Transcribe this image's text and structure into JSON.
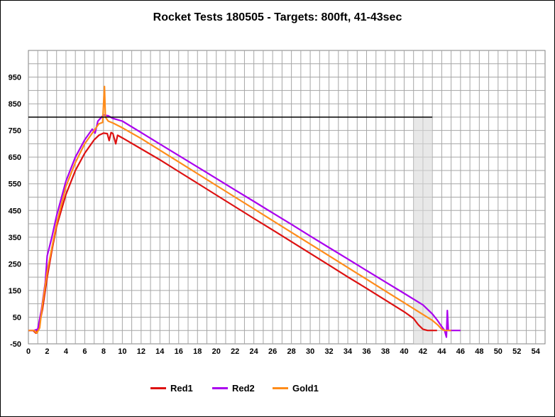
{
  "chart_data": {
    "type": "line",
    "title": "Rocket Tests 180505 - Targets: 800ft, 41-43sec",
    "xlabel": "",
    "ylabel": "",
    "xlim": [
      0,
      55
    ],
    "ylim": [
      -50,
      1050
    ],
    "x_ticks": [
      0,
      2,
      4,
      6,
      8,
      10,
      12,
      14,
      16,
      18,
      20,
      22,
      24,
      26,
      28,
      30,
      32,
      34,
      36,
      38,
      40,
      42,
      44,
      46,
      48,
      50,
      52,
      54
    ],
    "y_ticks": [
      -50,
      50,
      150,
      250,
      350,
      450,
      550,
      650,
      750,
      850,
      950
    ],
    "grid": true,
    "legend_position": "bottom",
    "target_altitude": 800,
    "target_window": [
      41,
      43
    ],
    "series": [
      {
        "name": "Red1",
        "color": "#dd1111",
        "points": [
          [
            0,
            0
          ],
          [
            0.5,
            0
          ],
          [
            0.8,
            -10
          ],
          [
            1.1,
            10
          ],
          [
            1.5,
            80
          ],
          [
            2,
            200
          ],
          [
            2.5,
            300
          ],
          [
            3,
            390
          ],
          [
            4,
            510
          ],
          [
            5,
            600
          ],
          [
            6,
            665
          ],
          [
            7,
            715
          ],
          [
            7.5,
            732
          ],
          [
            8,
            740
          ],
          [
            8.4,
            738
          ],
          [
            8.6,
            712
          ],
          [
            8.8,
            742
          ],
          [
            9,
            738
          ],
          [
            9.3,
            700
          ],
          [
            9.5,
            732
          ],
          [
            10,
            722
          ],
          [
            12,
            681
          ],
          [
            14,
            640
          ],
          [
            16,
            596
          ],
          [
            18,
            552
          ],
          [
            20,
            508
          ],
          [
            22,
            464
          ],
          [
            24,
            420
          ],
          [
            26,
            377
          ],
          [
            28,
            333
          ],
          [
            30,
            289
          ],
          [
            32,
            245
          ],
          [
            34,
            201
          ],
          [
            36,
            158
          ],
          [
            38,
            114
          ],
          [
            40,
            70
          ],
          [
            41,
            45
          ],
          [
            41.5,
            22
          ],
          [
            42,
            5
          ],
          [
            42.5,
            0
          ],
          [
            43.5,
            0
          ]
        ]
      },
      {
        "name": "Red2",
        "color": "#aa00ee",
        "points": [
          [
            0,
            0
          ],
          [
            0.6,
            0
          ],
          [
            1,
            5
          ],
          [
            1.4,
            80
          ],
          [
            1.8,
            180
          ],
          [
            2,
            280
          ],
          [
            2.5,
            350
          ],
          [
            3,
            430
          ],
          [
            4,
            560
          ],
          [
            5,
            650
          ],
          [
            6,
            715
          ],
          [
            6.8,
            755
          ],
          [
            7.1,
            740
          ],
          [
            7.4,
            785
          ],
          [
            8,
            808
          ],
          [
            8.5,
            805
          ],
          [
            9,
            795
          ],
          [
            10,
            785
          ],
          [
            12,
            742
          ],
          [
            14,
            699
          ],
          [
            16,
            656
          ],
          [
            18,
            613
          ],
          [
            20,
            570
          ],
          [
            22,
            527
          ],
          [
            24,
            484
          ],
          [
            26,
            441
          ],
          [
            28,
            398
          ],
          [
            30,
            354
          ],
          [
            32,
            311
          ],
          [
            34,
            268
          ],
          [
            36,
            225
          ],
          [
            38,
            182
          ],
          [
            40,
            139
          ],
          [
            42,
            96
          ],
          [
            43,
            62
          ],
          [
            43.5,
            40
          ],
          [
            44,
            15
          ],
          [
            44.3,
            0
          ],
          [
            44.5,
            -25
          ],
          [
            44.6,
            75
          ],
          [
            44.7,
            0
          ],
          [
            45,
            0
          ],
          [
            46,
            0
          ]
        ]
      },
      {
        "name": "Gold1",
        "color": "#ff8c1a",
        "points": [
          [
            0,
            0
          ],
          [
            0.6,
            0
          ],
          [
            0.9,
            -10
          ],
          [
            1.2,
            10
          ],
          [
            1.5,
            100
          ],
          [
            2,
            220
          ],
          [
            2.5,
            310
          ],
          [
            3,
            400
          ],
          [
            4,
            540
          ],
          [
            5,
            630
          ],
          [
            6,
            700
          ],
          [
            7,
            750
          ],
          [
            7.5,
            775
          ],
          [
            7.9,
            780
          ],
          [
            8.1,
            915
          ],
          [
            8.2,
            800
          ],
          [
            8.5,
            785
          ],
          [
            9,
            778
          ],
          [
            10,
            760
          ],
          [
            12,
            720
          ],
          [
            14,
            676
          ],
          [
            16,
            632
          ],
          [
            18,
            588
          ],
          [
            20,
            544
          ],
          [
            22,
            500
          ],
          [
            24,
            456
          ],
          [
            26,
            412
          ],
          [
            28,
            368
          ],
          [
            30,
            324
          ],
          [
            32,
            280
          ],
          [
            34,
            236
          ],
          [
            36,
            192
          ],
          [
            38,
            148
          ],
          [
            40,
            104
          ],
          [
            42,
            60
          ],
          [
            43,
            38
          ],
          [
            43.6,
            20
          ],
          [
            44,
            5
          ],
          [
            44.3,
            0
          ],
          [
            45,
            0
          ]
        ]
      }
    ]
  }
}
